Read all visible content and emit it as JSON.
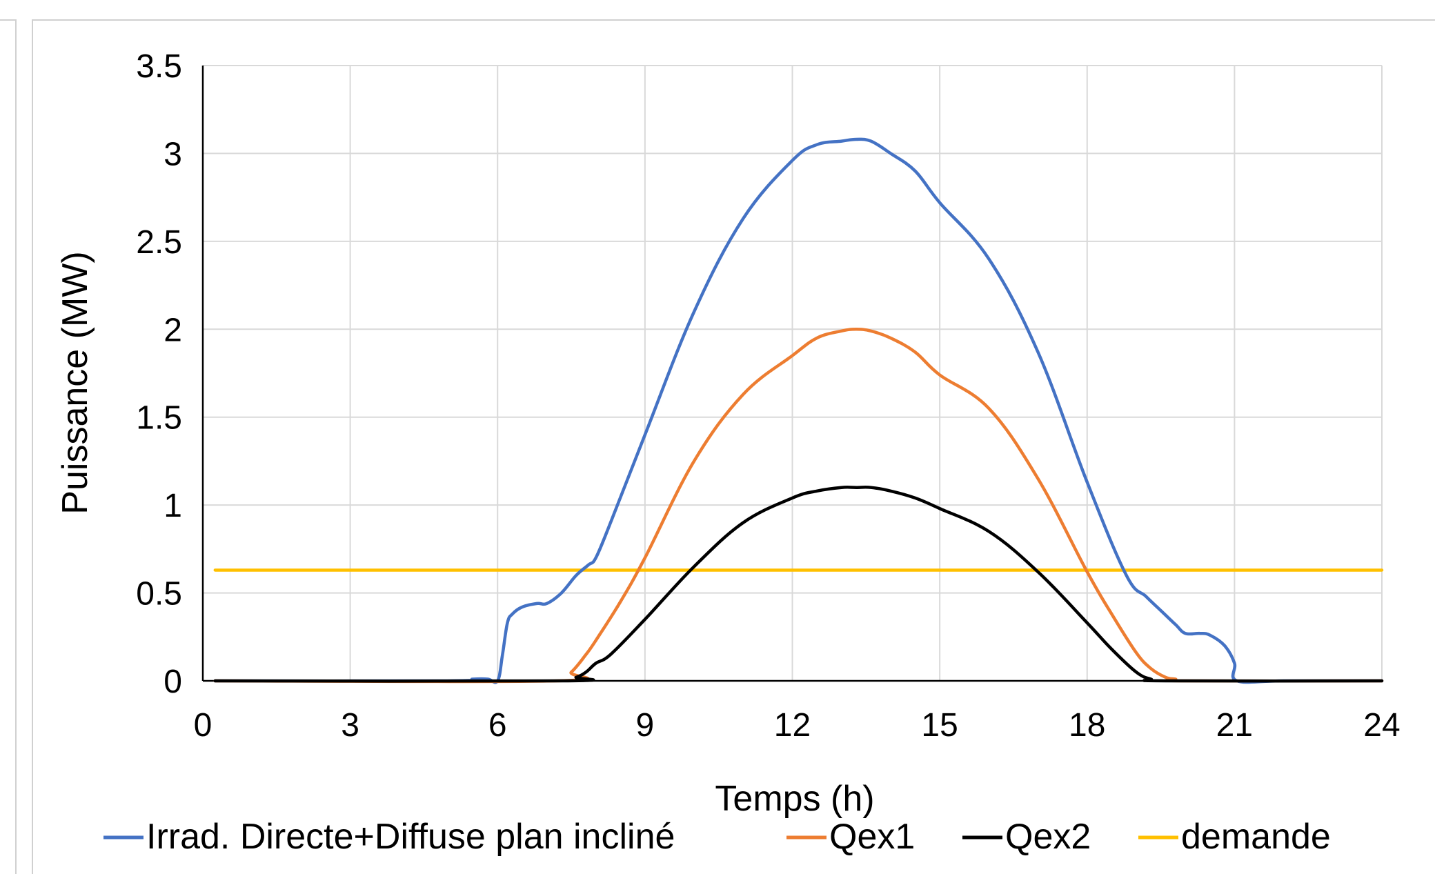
{
  "chart_data": {
    "type": "line",
    "title": "",
    "xlabel": "Temps (h)",
    "ylabel": "Puissance (MW)",
    "xlim": [
      0,
      24
    ],
    "ylim": [
      0,
      3.5
    ],
    "xticks": [
      "0",
      "3",
      "6",
      "9",
      "12",
      "15",
      "18",
      "21",
      "24"
    ],
    "yticks": [
      "0",
      "0.5",
      "1",
      "1.5",
      "2",
      "2.5",
      "3",
      "3.5"
    ],
    "grid": true,
    "legend_position": "bottom",
    "series": [
      {
        "name": "Irrad. Directe+Diffuse plan incliné",
        "color": "#4472C4",
        "x": [
          0.25,
          5,
          5.5,
          5.8,
          6.0,
          6.1,
          6.2,
          6.3,
          6.5,
          6.8,
          7.0,
          7.3,
          7.6,
          7.85,
          8.0,
          8.3,
          9.0,
          10.0,
          11.0,
          12.0,
          12.5,
          13.0,
          13.3,
          13.6,
          14.0,
          14.5,
          15.0,
          16.0,
          17.0,
          18.0,
          18.8,
          19.2,
          19.5,
          19.8,
          20.0,
          20.3,
          20.5,
          20.8,
          21.0,
          21.05,
          22,
          24
        ],
        "y": [
          0,
          0,
          0.01,
          0.01,
          0.0,
          0.15,
          0.33,
          0.38,
          0.42,
          0.44,
          0.44,
          0.5,
          0.6,
          0.66,
          0.7,
          0.9,
          1.4,
          2.1,
          2.63,
          2.96,
          3.05,
          3.07,
          3.08,
          3.07,
          3.0,
          2.9,
          2.72,
          2.4,
          1.87,
          1.13,
          0.6,
          0.48,
          0.4,
          0.32,
          0.27,
          0.27,
          0.26,
          0.2,
          0.1,
          0.0,
          0,
          0
        ]
      },
      {
        "name": "Qex1",
        "color": "#ED7D31",
        "x": [
          0.25,
          7.2,
          7.5,
          7.8,
          8.0,
          8.5,
          9.0,
          10.0,
          11.0,
          12.0,
          12.5,
          13.0,
          13.3,
          13.6,
          14.0,
          14.5,
          15.0,
          16.0,
          17.0,
          18.0,
          18.5,
          19.0,
          19.3,
          19.6,
          19.8,
          20.0,
          24
        ],
        "y": [
          0,
          0,
          0.05,
          0.15,
          0.23,
          0.45,
          0.7,
          1.25,
          1.63,
          1.85,
          1.95,
          1.99,
          2.0,
          1.99,
          1.95,
          1.87,
          1.74,
          1.55,
          1.15,
          0.62,
          0.38,
          0.16,
          0.07,
          0.02,
          0.01,
          0,
          0
        ]
      },
      {
        "name": "Qex2",
        "color": "#000000",
        "x": [
          0.25,
          7.3,
          7.6,
          7.8,
          8.0,
          8.3,
          9.0,
          10.0,
          11.0,
          12.0,
          12.5,
          13.0,
          13.3,
          13.6,
          14.0,
          14.5,
          15.0,
          16.0,
          17.0,
          18.0,
          18.5,
          19.0,
          19.3,
          19.6,
          24
        ],
        "y": [
          0,
          0,
          0.02,
          0.05,
          0.1,
          0.15,
          0.35,
          0.65,
          0.9,
          1.04,
          1.08,
          1.1,
          1.1,
          1.1,
          1.08,
          1.04,
          0.98,
          0.85,
          0.62,
          0.33,
          0.18,
          0.05,
          0.01,
          0,
          0
        ]
      },
      {
        "name": "demande",
        "color": "#FFC000",
        "x": [
          0.25,
          24
        ],
        "y": [
          0.63,
          0.63
        ]
      }
    ]
  }
}
